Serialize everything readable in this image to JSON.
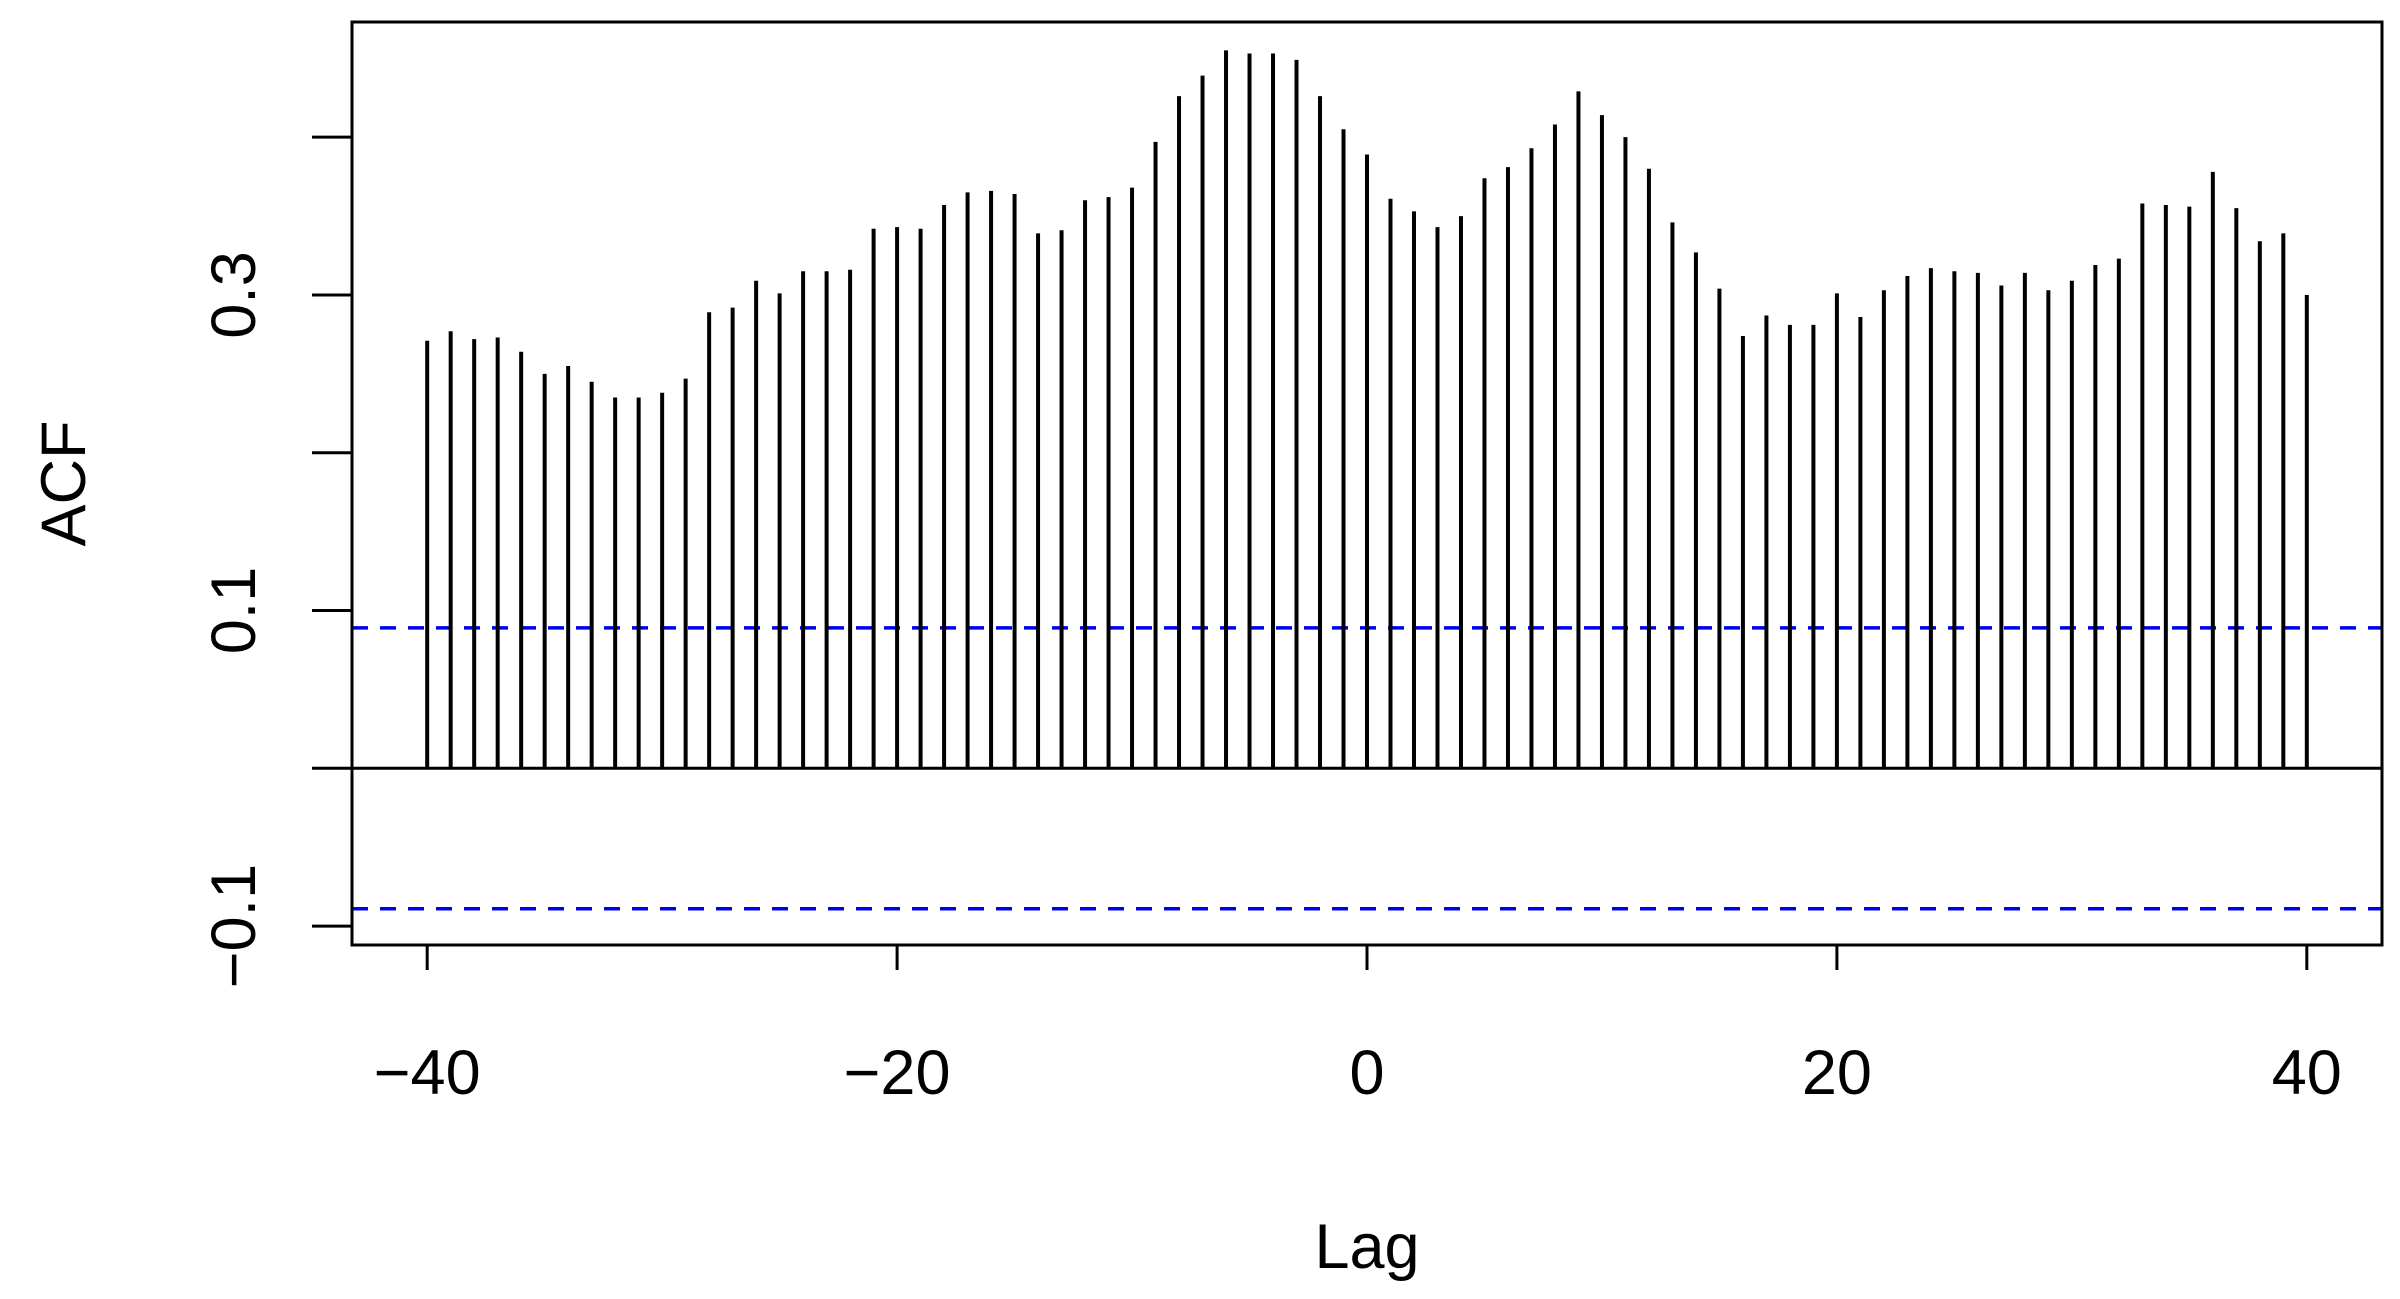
{
  "chart_data": {
    "type": "bar",
    "subtype": "acf-lollipop",
    "xlabel": "Lag",
    "ylabel": "ACF",
    "xlim": [
      -43.2,
      43.2
    ],
    "ylim": [
      -0.112,
      0.473
    ],
    "x_ticks": [
      -40,
      -20,
      0,
      20,
      40
    ],
    "x_tick_labels": [
      "−40",
      "−20",
      "0",
      "20",
      "40"
    ],
    "y_ticks": [
      -0.1,
      0.0,
      0.1,
      0.2,
      0.3,
      0.4
    ],
    "y_tick_labels": [
      "−0.1",
      "",
      "0.1",
      "",
      "0.3",
      ""
    ],
    "confidence_band": 0.089,
    "grid": false,
    "colors": {
      "bars": "#000000",
      "band": "#0000ee",
      "axis": "#000000"
    },
    "lags": [
      -40,
      -39,
      -38,
      -37,
      -36,
      -35,
      -34,
      -33,
      -32,
      -31,
      -30,
      -29,
      -28,
      -27,
      -26,
      -25,
      -24,
      -23,
      -22,
      -21,
      -20,
      -19,
      -18,
      -17,
      -16,
      -15,
      -14,
      -13,
      -12,
      -11,
      -10,
      -9,
      -8,
      -7,
      -6,
      -5,
      -4,
      -3,
      -2,
      -1,
      0,
      1,
      2,
      3,
      4,
      5,
      6,
      7,
      8,
      9,
      10,
      11,
      12,
      13,
      14,
      15,
      16,
      17,
      18,
      19,
      20,
      21,
      22,
      23,
      24,
      25,
      26,
      27,
      28,
      29,
      30,
      31,
      32,
      33,
      34,
      35,
      36,
      37,
      38,
      39,
      40
    ],
    "values": [
      0.271,
      0.277,
      0.272,
      0.273,
      0.264,
      0.25,
      0.255,
      0.245,
      0.235,
      0.235,
      0.238,
      0.247,
      0.289,
      0.292,
      0.309,
      0.301,
      0.315,
      0.315,
      0.316,
      0.342,
      0.343,
      0.342,
      0.357,
      0.365,
      0.366,
      0.364,
      0.339,
      0.341,
      0.36,
      0.362,
      0.368,
      0.397,
      0.426,
      0.439,
      0.455,
      0.453,
      0.453,
      0.449,
      0.426,
      0.405,
      0.389,
      0.361,
      0.353,
      0.343,
      0.35,
      0.374,
      0.381,
      0.393,
      0.408,
      0.429,
      0.414,
      0.4,
      0.38,
      0.346,
      0.327,
      0.304,
      0.274,
      0.287,
      0.281,
      0.281,
      0.301,
      0.286,
      0.303,
      0.312,
      0.317,
      0.315,
      0.314,
      0.306,
      0.314,
      0.303,
      0.309,
      0.319,
      0.323,
      0.358,
      0.357,
      0.356,
      0.378,
      0.355,
      0.334,
      0.339,
      0.3
    ]
  }
}
